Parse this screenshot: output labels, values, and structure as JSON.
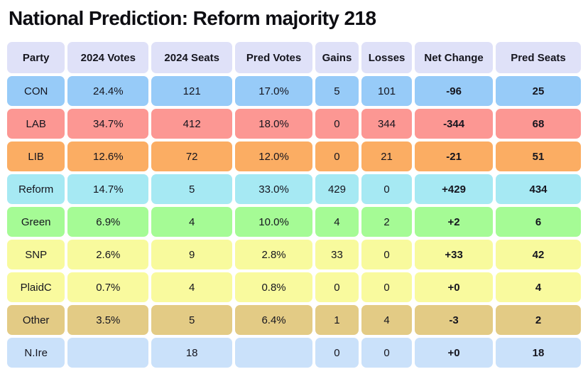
{
  "page": {
    "title": "National Prediction: Reform majority 218"
  },
  "chart_data": {
    "type": "table",
    "title": "National Prediction: Reform majority 218",
    "columns": [
      "Party",
      "2024 Votes",
      "2024 Seats",
      "Pred Votes",
      "Gains",
      "Losses",
      "Net Change",
      "Pred Seats"
    ],
    "rows": [
      [
        "CON",
        "24.4%",
        "121",
        "17.0%",
        "5",
        "101",
        "-96",
        "25"
      ],
      [
        "LAB",
        "34.7%",
        "412",
        "18.0%",
        "0",
        "344",
        "-344",
        "68"
      ],
      [
        "LIB",
        "12.6%",
        "72",
        "12.0%",
        "0",
        "21",
        "-21",
        "51"
      ],
      [
        "Reform",
        "14.7%",
        "5",
        "33.0%",
        "429",
        "0",
        "+429",
        "434"
      ],
      [
        "Green",
        "6.9%",
        "4",
        "10.0%",
        "4",
        "2",
        "+2",
        "6"
      ],
      [
        "SNP",
        "2.6%",
        "9",
        "2.8%",
        "33",
        "0",
        "+33",
        "42"
      ],
      [
        "PlaidC",
        "0.7%",
        "4",
        "0.8%",
        "0",
        "0",
        "+0",
        "4"
      ],
      [
        "Other",
        "3.5%",
        "5",
        "6.4%",
        "1",
        "4",
        "-3",
        "2"
      ],
      [
        "N.Ire",
        "",
        "18",
        "",
        "0",
        "0",
        "+0",
        "18"
      ]
    ],
    "layout_hints": {
      "bold_value_columns": [
        "Net Change",
        "Pred Seats"
      ],
      "grid": "rounded cells with white gaps"
    }
  },
  "style": {
    "header_bg": "#dfe1f8",
    "title_color": "#0d0d12",
    "text_color": "#15151e",
    "row_colors": [
      "#97cbf8",
      "#fc9793",
      "#fbad63",
      "#a6e9f3",
      "#a5fb95",
      "#f8fa9d",
      "#f9fa9e",
      "#e3cb85",
      "#cae1fa"
    ],
    "bold_column_indexes": [
      6,
      7
    ]
  }
}
